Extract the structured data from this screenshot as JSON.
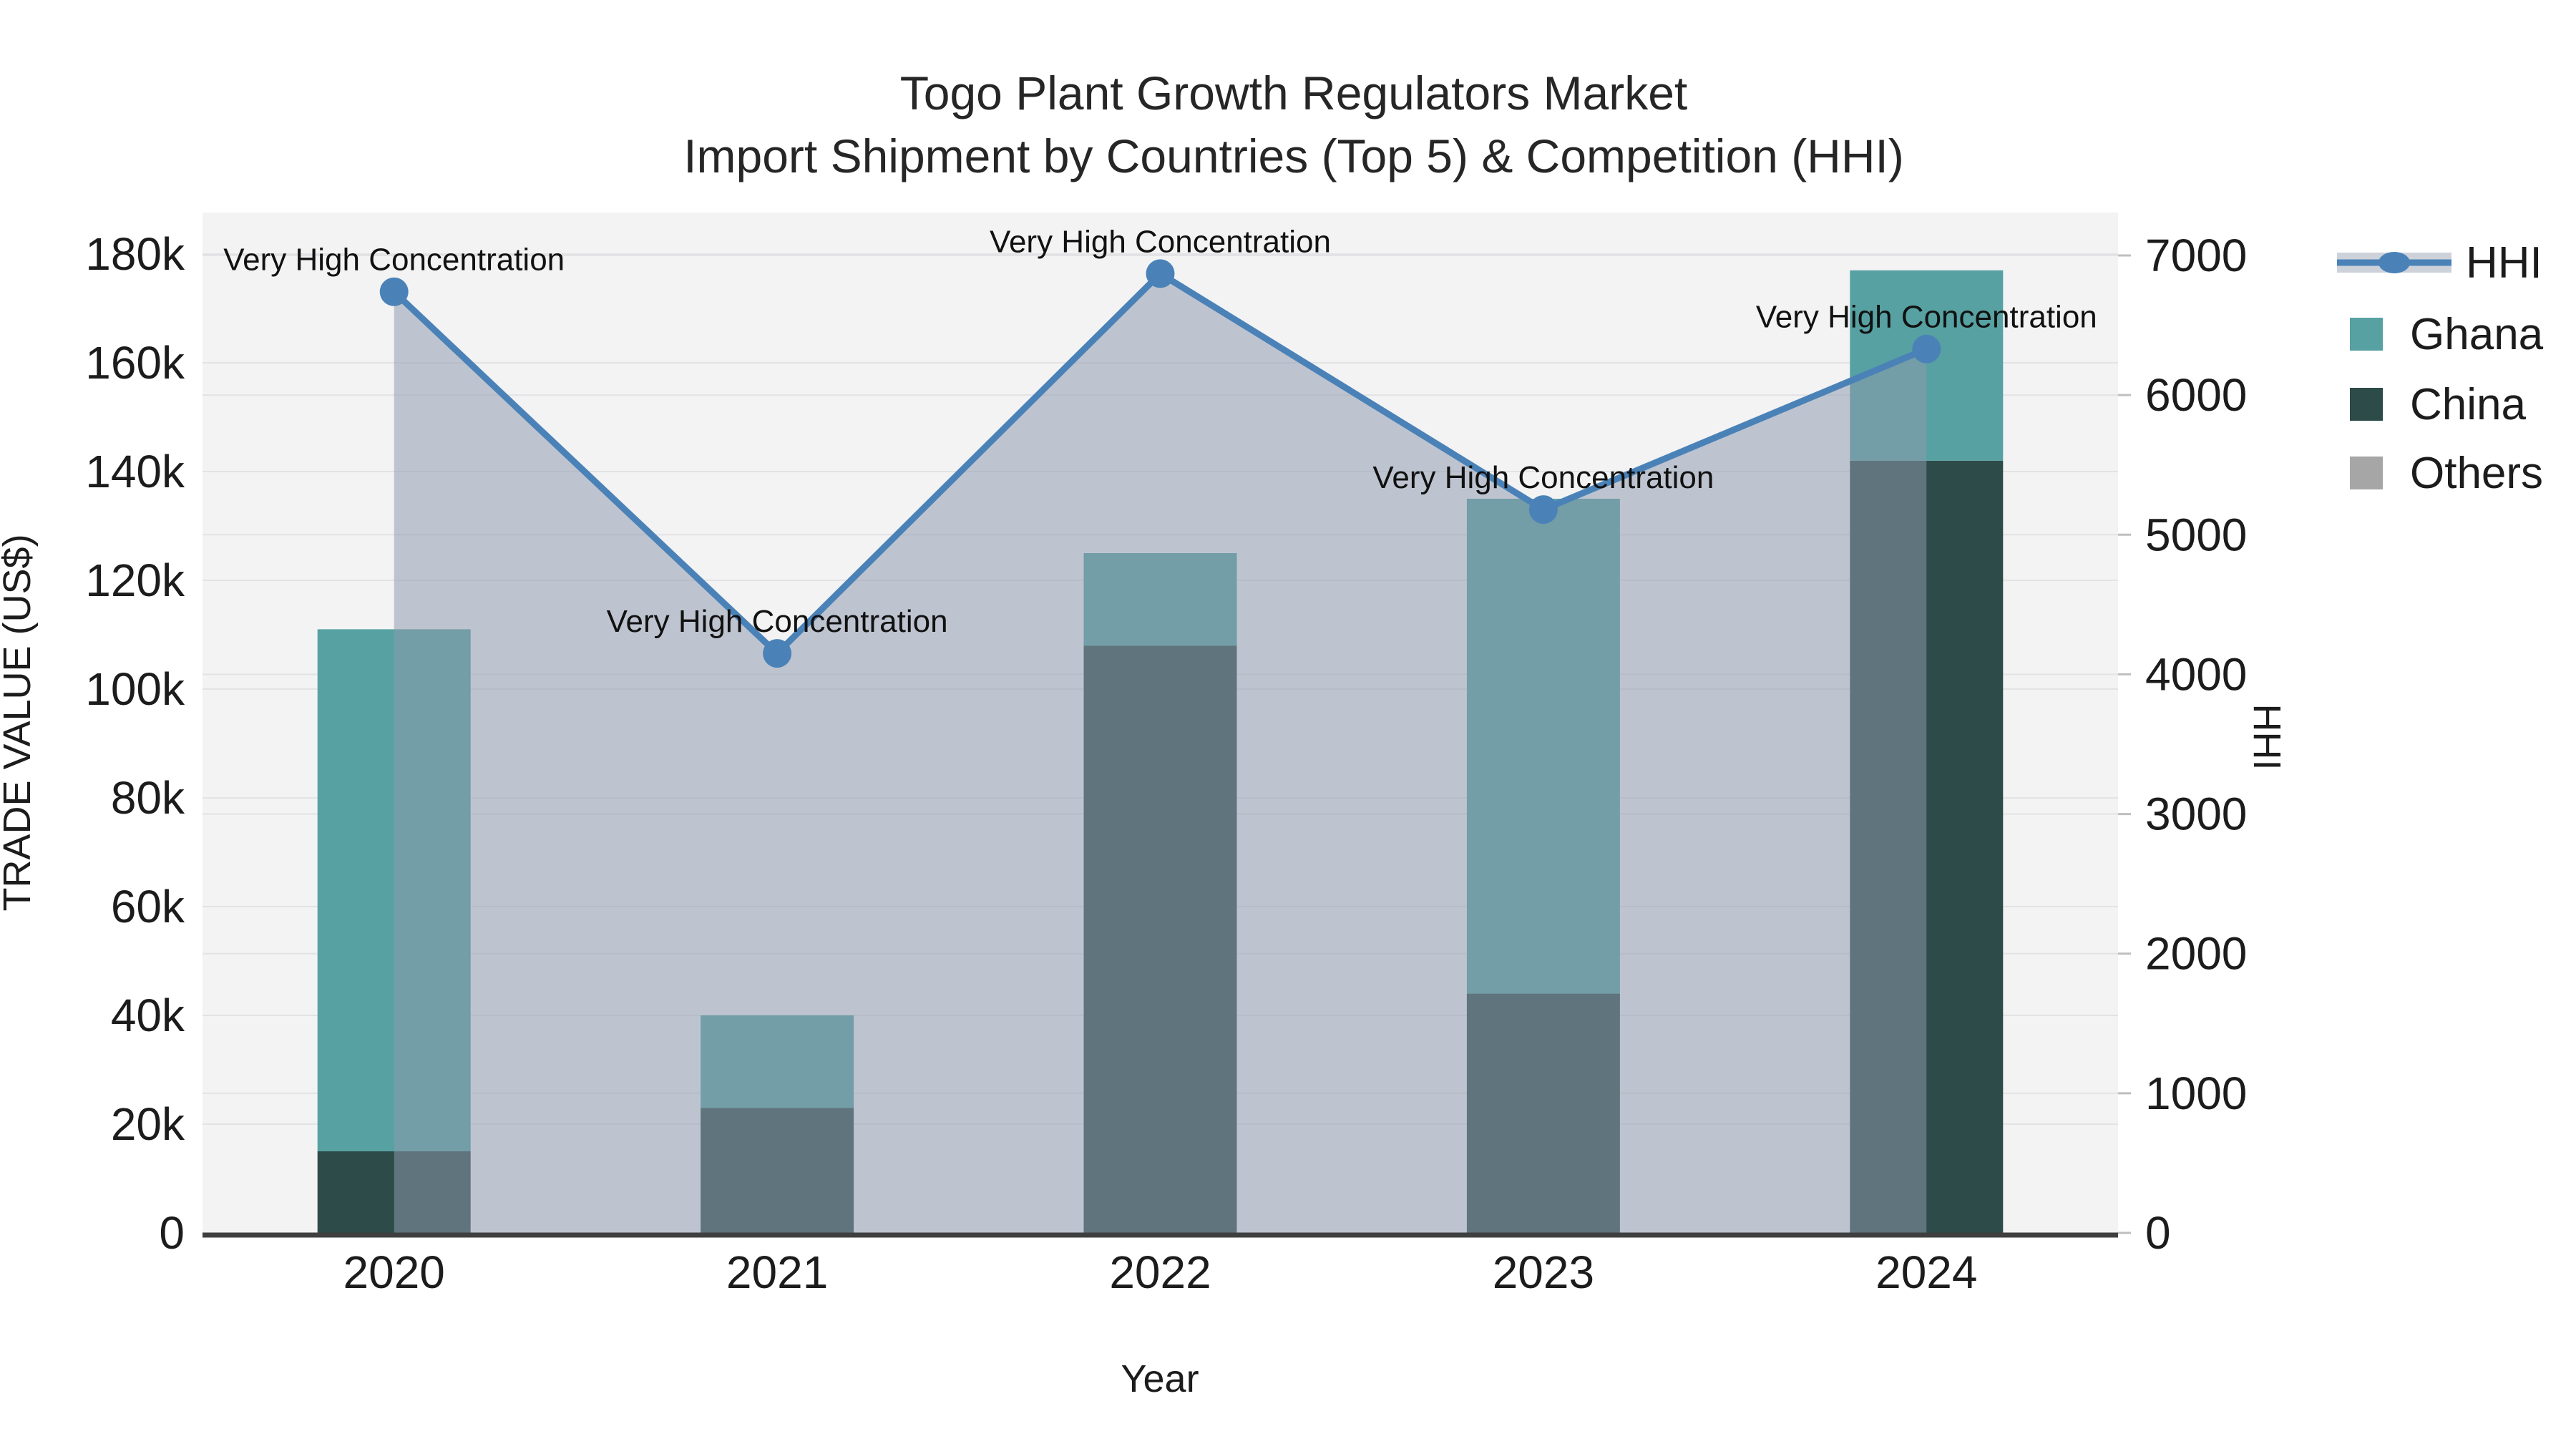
{
  "figure": {
    "title_line1": "Togo Plant Growth Regulators Market",
    "title_line2": "Import Shipment by Countries (Top 5) & Competition (HHI)"
  },
  "axes": {
    "left_title": "TRADE VALUE (US$)",
    "right_title": "HHI",
    "x_title": "Year",
    "left_ticks": [
      "0",
      "20k",
      "40k",
      "60k",
      "80k",
      "100k",
      "120k",
      "140k",
      "160k",
      "180k"
    ],
    "right_ticks": [
      "0",
      "1000",
      "2000",
      "3000",
      "4000",
      "5000",
      "6000",
      "7000"
    ]
  },
  "legend": [
    {
      "label": "HHI",
      "icon": "hhi-line-icon",
      "color": "#4a82b8"
    },
    {
      "label": "Ghana",
      "icon": "square-swatch",
      "color": "#57a1a2"
    },
    {
      "label": "China",
      "icon": "square-swatch",
      "color": "#2c4b49"
    },
    {
      "label": "Others",
      "icon": "square-swatch",
      "color": "#a6a6a6"
    }
  ],
  "colors": {
    "plot_background": "#f3f3f4",
    "gridline": "#e3e3e5",
    "axis_line": "#3f3f3f",
    "hhi_line": "#4a82b8",
    "hhi_area_fill": "rgba(141,153,173,0.52)",
    "ghana": "#57a1a2",
    "china": "#2c4b49",
    "others": "#a6a6a6"
  },
  "chart_data": {
    "type": "bar",
    "subtype": "stacked-bars-with-line-area-overlay",
    "categories": [
      "2020",
      "2021",
      "2022",
      "2023",
      "2024"
    ],
    "series": [
      {
        "name": "Ghana",
        "type": "bar",
        "color": "#57a1a2",
        "values": [
          96000,
          17000,
          17000,
          91000,
          35000
        ]
      },
      {
        "name": "China",
        "type": "bar",
        "color": "#2c4b49",
        "values": [
          15000,
          23000,
          108000,
          44000,
          142000
        ]
      },
      {
        "name": "Others",
        "type": "bar",
        "color": "#a6a6a6",
        "values": [
          0,
          0,
          0,
          0,
          0
        ]
      }
    ],
    "stack_order_bottom_to_top": [
      "China",
      "Ghana",
      "Others"
    ],
    "stacked_totals": [
      111000,
      40000,
      125000,
      135000,
      177000
    ],
    "line_series": {
      "name": "HHI",
      "axis": "right",
      "color": "#4a82b8",
      "values": [
        6740,
        4150,
        6870,
        5180,
        6330
      ],
      "area_fill": "rgba(141,153,173,0.52)",
      "point_annotations": [
        "Very High Concentration",
        "Very High Concentration",
        "Very High Concentration",
        "Very High Concentration",
        "Very High Concentration"
      ]
    },
    "title": "Togo Plant Growth Regulators Market — Import Shipment by Countries (Top 5) & Competition (HHI)",
    "xlabel": "Year",
    "ylabel_left": "TRADE VALUE (US$)",
    "ylabel_right": "HHI",
    "ylim_left": [
      0,
      180000
    ],
    "ylim_right": [
      0,
      7000
    ],
    "grid": true,
    "legend_position": "right"
  }
}
